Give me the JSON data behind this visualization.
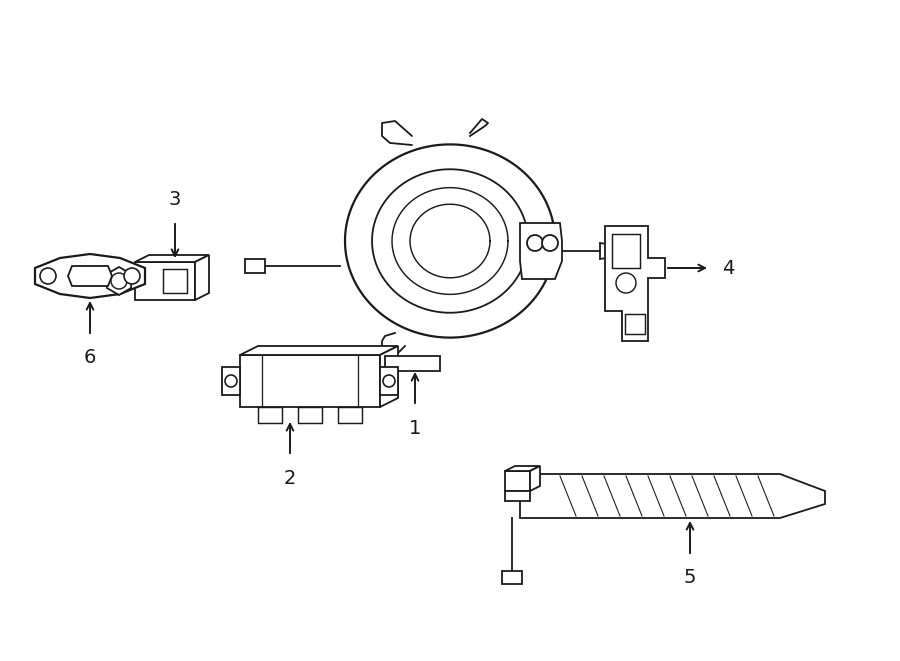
{
  "bg_color": "#ffffff",
  "line_color": "#1a1a1a",
  "fig_width": 9.0,
  "fig_height": 6.61,
  "dpi": 100,
  "lw": 1.3
}
